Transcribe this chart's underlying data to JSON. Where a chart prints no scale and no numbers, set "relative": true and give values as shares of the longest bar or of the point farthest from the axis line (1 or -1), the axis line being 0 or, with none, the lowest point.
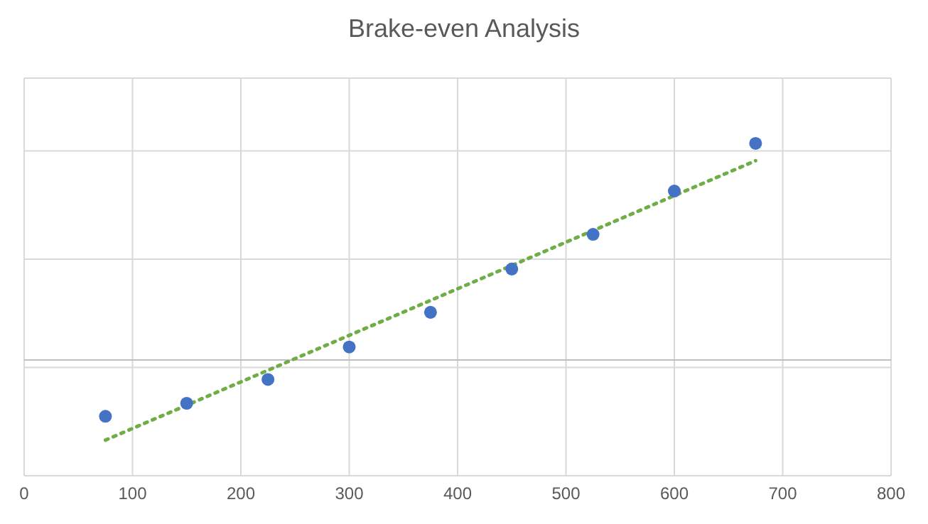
{
  "chart_data": {
    "type": "scatter",
    "title": "Brake-even Analysis",
    "relative": true,
    "x": [
      75,
      150,
      225,
      300,
      375,
      450,
      525,
      600,
      675
    ],
    "series": [
      {
        "color": "#4472c4",
        "values": [
          -0.26,
          -0.2,
          -0.09,
          0.06,
          0.22,
          0.42,
          0.58,
          0.78,
          1
        ]
      },
      {
        "type": "line",
        "color": "#70ad47",
        "line_style": "dotted",
        "marker": "none",
        "x": [
          75,
          675
        ],
        "values": [
          -0.37,
          0.92
        ]
      }
    ],
    "xlim": [
      0,
      800
    ],
    "xticks": [
      0,
      100,
      200,
      300,
      400,
      500,
      600,
      700,
      800
    ],
    "grid": true,
    "marker": "circle"
  }
}
